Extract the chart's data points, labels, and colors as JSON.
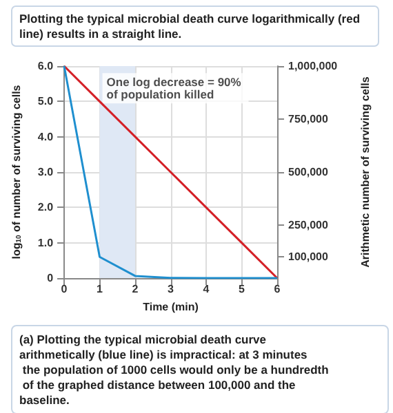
{
  "chart_data": {
    "type": "line",
    "title": "Plotting the typical microbial death curve logarithmically (red line) results in a straight line.",
    "xlabel": "Time (min)",
    "ylabel": "log$_{10}$ of number of surviving cells",
    "y2label": "Arithmetic number of surviving cells",
    "x": [
      0,
      1,
      2,
      3,
      4,
      5,
      6
    ],
    "series": [
      {
        "color": "#d42027",
        "values": [
          6,
          5,
          4,
          3,
          2,
          1,
          0
        ]
      },
      {
        "color": "#1f8fcf",
        "axis": "y2",
        "values": [
          1000000,
          100000,
          10000,
          1000,
          100,
          10,
          1
        ]
      }
    ],
    "xlim": [
      0,
      6
    ],
    "xticks": [
      0,
      1,
      2,
      3,
      4,
      5,
      6
    ],
    "ylim": [
      0,
      6
    ],
    "yticks": [
      0,
      {
        "value": 1,
        "label": "1.0"
      },
      {
        "value": 2,
        "label": "2.0"
      },
      {
        "value": 3,
        "label": "3.0"
      },
      {
        "value": 4,
        "label": "4.0"
      },
      {
        "value": 5,
        "label": "5.0"
      },
      {
        "value": 6,
        "label": "6.0"
      }
    ],
    "y2lim": [
      0,
      1000000
    ],
    "y2ticks": [
      {
        "value": 100000,
        "label": "100,000"
      },
      {
        "value": 250000,
        "label": "250,000"
      },
      {
        "value": 500000,
        "label": "500,000"
      },
      {
        "value": 750000,
        "label": "750,000"
      },
      {
        "value": 1000000,
        "label": "1,000,000"
      }
    ],
    "bands": [
      {
        "axis": "x",
        "from": 1,
        "to": 2,
        "color": "#dfe8f5"
      }
    ],
    "annotations": [
      {
        "text": "One log decrease = 90% of population killed",
        "x": 1,
        "y": 5.8
      },
      "(a) Plotting the typical microbial death curve arithmetically (blue line) is impractical: at 3 minutes the population of 1000 cells would only be a hundredth of the graphed distance between 100,000 and the baseline."
    ],
    "grid": true,
    "marker": "none",
    "line_style": "solid"
  }
}
